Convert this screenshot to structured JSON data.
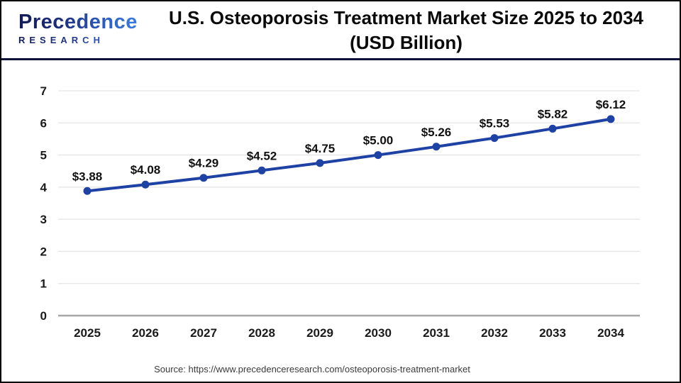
{
  "header": {
    "logo": {
      "line1": "Precedence",
      "line2": "RESEARCH"
    },
    "title_line1": "U.S. Osteoporosis Treatment Market Size 2025 to 2034",
    "title_line2": "(USD Billion)"
  },
  "footer": {
    "source": "Source: https://www.precedenceresearch.com/osteoporosis-treatment-market"
  },
  "colors": {
    "line": "#1e42a4",
    "point": "#1e42a4",
    "grid": "#e4e4e4",
    "axis": "#a8a8a8",
    "divider": "#0d1238",
    "tick_label": "#1a1a1a",
    "data_label": "#111111",
    "logo_navy": "#131c55",
    "logo_blue": "#3b7de2"
  },
  "chart_data": {
    "type": "line",
    "title": "U.S. Osteoporosis Treatment Market Size 2025 to 2034 (USD Billion)",
    "categories": [
      "2025",
      "2026",
      "2027",
      "2028",
      "2029",
      "2030",
      "2031",
      "2032",
      "2033",
      "2034"
    ],
    "values": [
      3.88,
      4.08,
      4.29,
      4.52,
      4.75,
      5.0,
      5.26,
      5.53,
      5.82,
      6.12
    ],
    "data_labels": [
      "$3.88",
      "$4.08",
      "$4.29",
      "$4.52",
      "$4.75",
      "$5.00",
      "$5.26",
      "$5.53",
      "$5.82",
      "$6.12"
    ],
    "xlabel": "",
    "ylabel": "",
    "ylim": [
      0,
      7
    ],
    "yticks": [
      0,
      1,
      2,
      3,
      4,
      5,
      6,
      7
    ],
    "grid": true,
    "legend": false
  }
}
